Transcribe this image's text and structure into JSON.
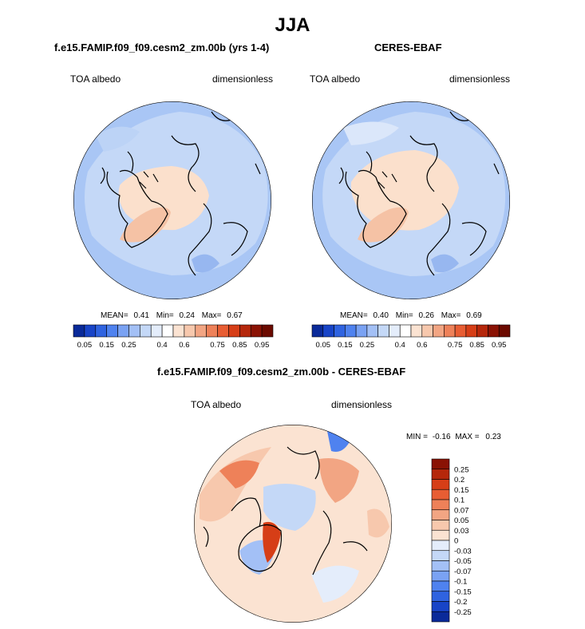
{
  "figure": {
    "title": "JJA",
    "colors": {
      "ocean_low": "#a9c6f5",
      "ocean_mid": "#c4d8f7",
      "ice": "#fbe0cc",
      "greenland": "#f5c2a5",
      "coast": "#000000"
    }
  },
  "chart_data": [
    {
      "type": "heatmap",
      "projection": "north-polar-stereographic",
      "title": "f.e15.FAMIP.f09_f09.cesm2_zm.00b (yrs 1-4)",
      "left_label": "TOA albedo",
      "right_label": "dimensionless",
      "stats": {
        "mean_label": "MEAN=",
        "mean": "0.41",
        "min_label": "Min=",
        "min": "0.24",
        "max_label": "Max=",
        "max": "0.67"
      },
      "colorbar": {
        "orientation": "horizontal",
        "levels": [
          0.05,
          0.1,
          0.15,
          0.2,
          0.25,
          0.3,
          0.35,
          0.4,
          0.5,
          0.6,
          0.65,
          0.7,
          0.75,
          0.8,
          0.85,
          0.9,
          0.95
        ],
        "tick_labels": [
          "0.05",
          "0.15",
          "0.25",
          "0.4",
          "0.6",
          "0.75",
          "0.85",
          "0.95"
        ],
        "colors": [
          "#0a2a99",
          "#1844c7",
          "#2f63e0",
          "#4f82ef",
          "#7aa2f3",
          "#a3c0f6",
          "#c4d8f7",
          "#e4edfb",
          "#ffffff",
          "#fbe3d2",
          "#f7c8ad",
          "#f2a583",
          "#ee8159",
          "#e85d33",
          "#d63e17",
          "#b5270b",
          "#8a1204",
          "#6b0a00"
        ]
      }
    },
    {
      "type": "heatmap",
      "projection": "north-polar-stereographic",
      "title": "CERES-EBAF",
      "left_label": "TOA albedo",
      "right_label": "dimensionless",
      "stats": {
        "mean_label": "MEAN=",
        "mean": "0.40",
        "min_label": "Min=",
        "min": "0.26",
        "max_label": "Max=",
        "max": "0.69"
      },
      "colorbar": {
        "orientation": "horizontal",
        "levels": [
          0.05,
          0.1,
          0.15,
          0.2,
          0.25,
          0.3,
          0.35,
          0.4,
          0.5,
          0.6,
          0.65,
          0.7,
          0.75,
          0.8,
          0.85,
          0.9,
          0.95
        ],
        "tick_labels": [
          "0.05",
          "0.15",
          "0.25",
          "0.4",
          "0.6",
          "0.75",
          "0.85",
          "0.95"
        ],
        "colors": [
          "#0a2a99",
          "#1844c7",
          "#2f63e0",
          "#4f82ef",
          "#7aa2f3",
          "#a3c0f6",
          "#c4d8f7",
          "#e4edfb",
          "#ffffff",
          "#fbe3d2",
          "#f7c8ad",
          "#f2a583",
          "#ee8159",
          "#e85d33",
          "#d63e17",
          "#b5270b",
          "#8a1204",
          "#6b0a00"
        ]
      }
    },
    {
      "type": "heatmap",
      "projection": "north-polar-stereographic",
      "title": "f.e15.FAMIP.f09_f09.cesm2_zm.00b - CERES-EBAF",
      "left_label": "TOA albedo",
      "right_label": "dimensionless",
      "stats": {
        "min_label": "MIN =",
        "min": "-0.16",
        "max_label": "MAX =",
        "max": "0.23"
      },
      "colorbar": {
        "orientation": "vertical",
        "levels": [
          0.25,
          0.2,
          0.15,
          0.1,
          0.07,
          0.05,
          0.03,
          0,
          -0.03,
          -0.05,
          -0.07,
          -0.1,
          -0.15,
          -0.2,
          -0.25
        ],
        "tick_labels": [
          "0.25",
          "0.2",
          "0.15",
          "0.1",
          "0.07",
          "0.05",
          "0.03",
          "0",
          "-0.03",
          "-0.05",
          "-0.07",
          "-0.1",
          "-0.15",
          "-0.2",
          "-0.25"
        ],
        "colors": [
          "#8a1204",
          "#b5270b",
          "#d63e17",
          "#e85d33",
          "#ee8159",
          "#f2a583",
          "#f7c8ad",
          "#fbe3d2",
          "#e4edfb",
          "#c4d8f7",
          "#a3c0f6",
          "#7aa2f3",
          "#4f82ef",
          "#2f63e0",
          "#1844c7",
          "#0a2a99"
        ]
      }
    }
  ]
}
